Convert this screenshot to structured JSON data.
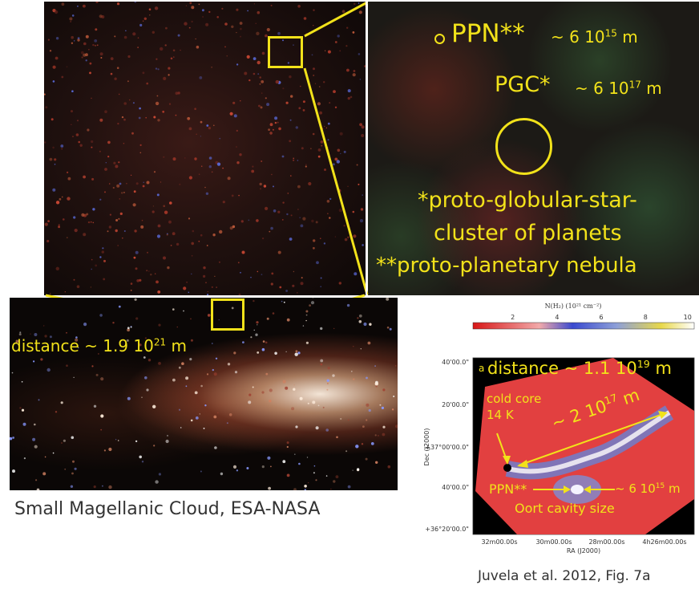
{
  "colors": {
    "annotation": "#f2e21a"
  },
  "panel_top_right": {
    "ppn_label": "PPN**",
    "ppn_size": "~ 6 10",
    "ppn_exp": "15",
    "ppn_unit": "m",
    "pgc_label": "PGC*",
    "pgc_size": "~ 6 10",
    "pgc_exp": "17",
    "pgc_unit": "m",
    "footnote_1a": "*proto-globular-star-",
    "footnote_1b": "cluster of planets",
    "footnote_2": "**proto-planetary nebula"
  },
  "panel_bottom_left": {
    "distance_prefix": "distance ~ 1.9 10",
    "distance_exp": "21",
    "distance_unit": "m",
    "caption": "Small Magellanic Cloud, ESA-NASA"
  },
  "panel_bottom_right": {
    "colorbar_title": "N(H₂) (10²¹ cm⁻²)",
    "colorbar_ticks": [
      "2",
      "4",
      "6",
      "8",
      "10"
    ],
    "panel_letter": "a",
    "distance_prefix": "distance ~ 1.1 10",
    "distance_exp": "19",
    "distance_unit": "m",
    "cold_core_line1": "cold core",
    "cold_core_line2": "14 K",
    "span_prefix": "~ 2 10",
    "span_exp": "17",
    "span_unit": "m",
    "ppn_label": "PPN**",
    "ppn_size": "~ 6 10",
    "ppn_exp": "15",
    "ppn_unit": "m",
    "oort_label": "Oort cavity size",
    "dec_ticks": [
      "40'00.0\"",
      "20'00.0\"",
      "+37°00'00.0\"",
      "40'00.0\"",
      "+36°20'00.0\""
    ],
    "ra_ticks": [
      "32m00.00s",
      "30m00.00s",
      "28m00.00s",
      "4h26m00.00s"
    ],
    "dec_axis_label": "Dec (J2000)",
    "ra_axis_label": "RA (J2000)",
    "caption": "Juvela et al. 2012, Fig. 7a"
  }
}
